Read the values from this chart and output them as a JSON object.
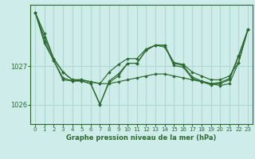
{
  "title": "Graphe pression niveau de la mer (hPa)",
  "bg_color": "#cdecea",
  "grid_color": "#b0d8d0",
  "line_color": "#2d6a2d",
  "marker_color": "#2d6a2d",
  "ylim": [
    1025.5,
    1028.6
  ],
  "yticks": [
    1026,
    1027
  ],
  "xlim": [
    -0.5,
    23.5
  ],
  "xticks": [
    0,
    1,
    2,
    3,
    4,
    5,
    6,
    7,
    8,
    9,
    10,
    11,
    12,
    13,
    14,
    15,
    16,
    17,
    18,
    19,
    20,
    21,
    22,
    23
  ],
  "line1": [
    1028.4,
    1027.85,
    1027.2,
    1026.85,
    1026.65,
    1026.65,
    1026.6,
    1026.55,
    1026.55,
    1026.6,
    1026.65,
    1026.7,
    1026.75,
    1026.8,
    1026.8,
    1026.75,
    1026.7,
    1026.65,
    1026.6,
    1026.55,
    1026.5,
    1026.55,
    1027.1,
    1027.95
  ],
  "line2": [
    1028.4,
    1027.75,
    1027.2,
    1026.85,
    1026.65,
    1026.65,
    1026.6,
    1026.55,
    1026.85,
    1027.05,
    1027.2,
    1027.2,
    1027.45,
    1027.55,
    1027.5,
    1027.1,
    1027.05,
    1026.85,
    1026.75,
    1026.65,
    1026.65,
    1026.75,
    1027.1,
    1027.95
  ],
  "line3": [
    1028.4,
    1027.65,
    1027.15,
    1026.7,
    1026.62,
    1026.62,
    1026.55,
    1026.02,
    1026.58,
    1026.75,
    1027.08,
    1027.08,
    1027.42,
    1027.55,
    1027.55,
    1027.08,
    1027.02,
    1026.72,
    1026.62,
    1026.55,
    1026.58,
    1026.68,
    1027.28,
    1027.95
  ],
  "line4": [
    1028.4,
    1027.6,
    1027.15,
    1026.65,
    1026.62,
    1026.62,
    1026.55,
    1026.0,
    1026.62,
    1026.8,
    1027.08,
    1027.08,
    1027.42,
    1027.55,
    1027.55,
    1027.02,
    1026.98,
    1026.68,
    1026.6,
    1026.52,
    1026.55,
    1026.65,
    1027.25,
    1027.95
  ]
}
